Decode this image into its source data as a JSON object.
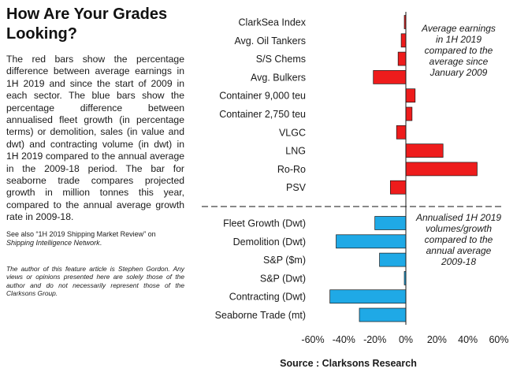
{
  "title": "How Are Your Grades Looking?",
  "body_text": "The red bars show the percentage difference between average earnings in 1H 2019 and since the start of 2009 in each sector. The blue bars show the percentage difference between annualised fleet growth (in percentage terms) or demolition, sales (in value and dwt) and contracting volume (in dwt) in 1H 2019 compared to the annual average in the 2009-18 period. The bar for seaborne trade compares projected growth in million tonnes this year, compared to the annual average growth rate in 2009-18.",
  "see_also_prefix": "See also “1H 2019 Shipping Market Review” on ",
  "see_also_link": "Shipping Intelligence Network",
  "see_also_suffix": ".",
  "disclaimer": "The author of this feature article is Stephen Gordon. Any views or opinions presented here are solely those of the author and do not necessarily represent those of the Clarksons Group.",
  "colors": {
    "earnings": "#ee1c1c",
    "volumes": "#1fa9e6",
    "divider": "#888888"
  },
  "chart_data": {
    "type": "bar",
    "orientation": "horizontal",
    "xlim": [
      -60,
      60
    ],
    "x_ticks": [
      "-60%",
      "-40%",
      "-20%",
      "0%",
      "20%",
      "40%",
      "60%"
    ],
    "x_tick_values": [
      -60,
      -40,
      -20,
      0,
      20,
      40,
      60
    ],
    "source": "Source : Clarksons Research",
    "groups": [
      {
        "annotation": [
          "Average earnings",
          "in 1H 2019",
          "compared to the",
          "average since",
          "January 2009"
        ],
        "categories": [
          "ClarkSea Index",
          "Avg. Oil Tankers",
          "S/S Chems",
          "Avg. Bulkers",
          "Container 9,000 teu",
          "Container 2,750 teu",
          "VLGC",
          "LNG",
          "Ro-Ro",
          "PSV"
        ],
        "values": [
          -1,
          -3,
          -5,
          -21,
          6,
          4,
          -6,
          24,
          46,
          -10
        ]
      },
      {
        "annotation": [
          "Annualised 1H 2019",
          "volumes/growth",
          "compared to the",
          "annual average",
          "2009-18"
        ],
        "categories": [
          "Fleet Growth (Dwt)",
          "Demolition (Dwt)",
          "S&P ($m)",
          "S&P (Dwt)",
          "Contracting (Dwt)",
          "Seaborne Trade (mt)"
        ],
        "values": [
          -20,
          -45,
          -17,
          -1,
          -49,
          -30
        ]
      }
    ]
  }
}
